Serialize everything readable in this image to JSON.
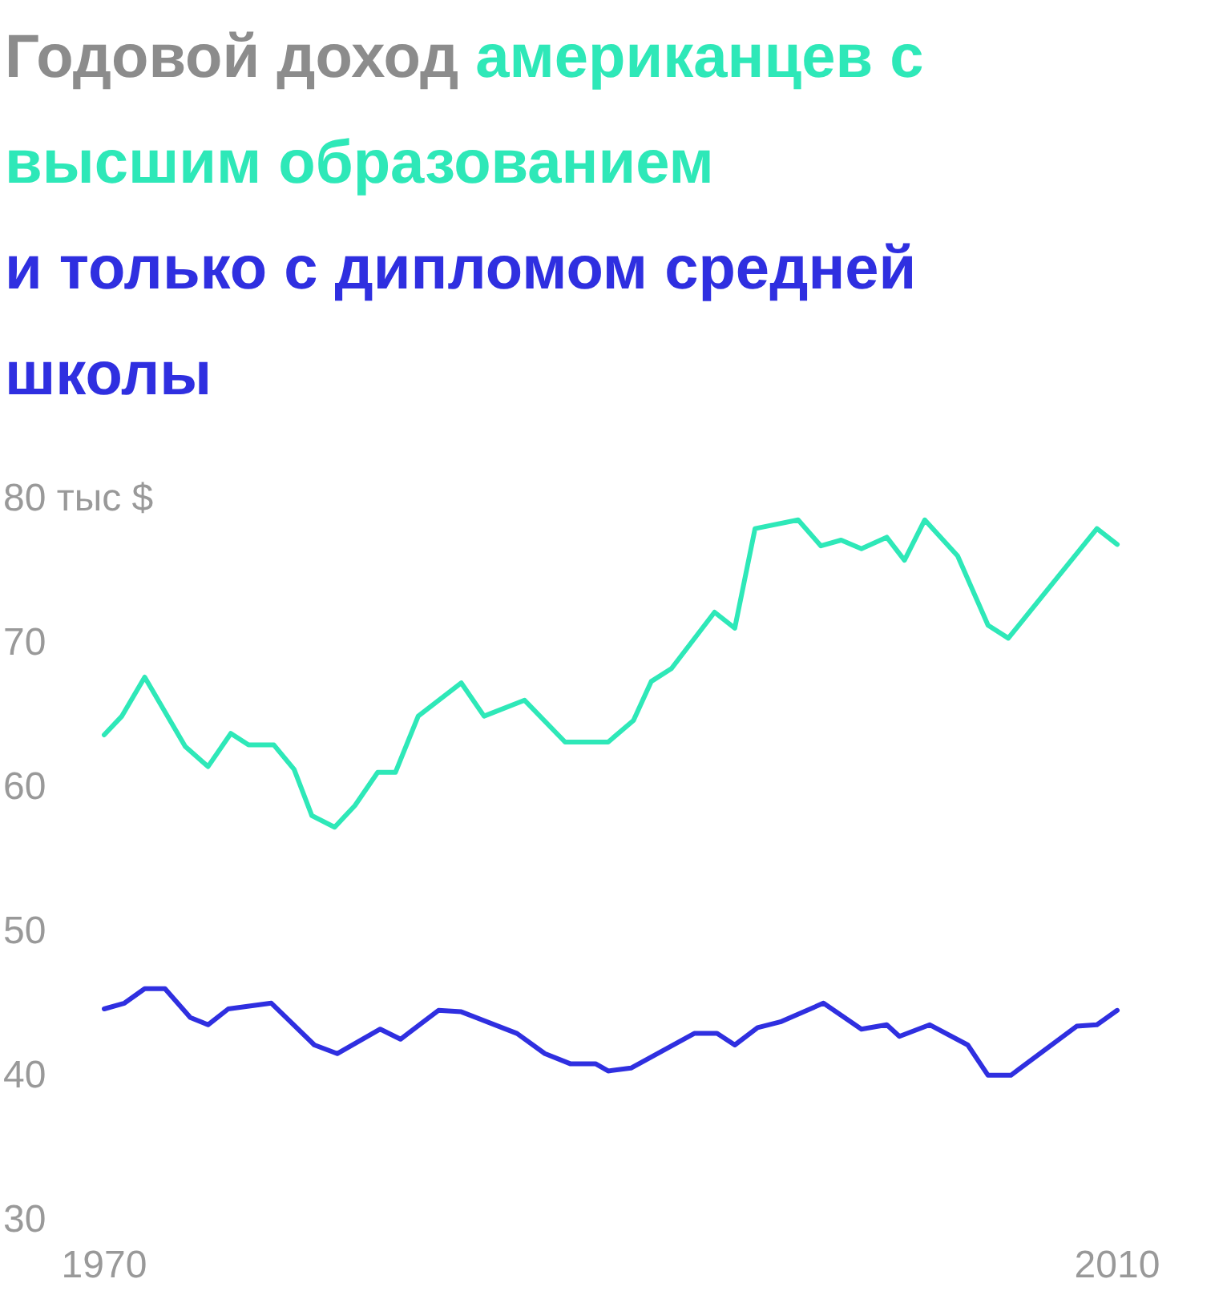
{
  "chart_data": {
    "type": "line",
    "title": "Годовой доход",
    "series": [
      {
        "name": "американцев с высшим образованием",
        "color": "#2ee8b8",
        "x": [
          1970.0,
          1970.7,
          1971.6,
          1973.2,
          1974.1,
          1975.0,
          1975.7,
          1976.7,
          1977.5,
          1978.2,
          1979.1,
          1979.9,
          1980.8,
          1981.5,
          1982.4,
          1984.1,
          1985.0,
          1986.6,
          1988.2,
          1989.9,
          1990.9,
          1991.6,
          1992.4,
          1994.1,
          1994.9,
          1995.7,
          1997.4,
          1998.3,
          1999.1,
          1999.9,
          2000.9,
          2001.6,
          2002.4,
          2003.7,
          2004.9,
          2005.7,
          2009.2,
          2010.0
        ],
        "values": [
          63.5,
          64.8,
          67.5,
          62.7,
          61.3,
          63.6,
          62.8,
          62.8,
          61.1,
          57.9,
          57.1,
          58.6,
          60.9,
          60.9,
          64.8,
          67.1,
          64.8,
          65.9,
          63.0,
          63.0,
          64.5,
          67.2,
          68.1,
          72.0,
          70.9,
          77.8,
          78.4,
          76.6,
          77.0,
          76.4,
          77.2,
          75.6,
          78.4,
          75.9,
          71.1,
          70.2,
          77.8,
          76.7
        ]
      },
      {
        "name": "и только с дипломом средней школы",
        "color": "#2f2fe0",
        "x": [
          1970.0,
          1970.8,
          1971.6,
          1972.4,
          1973.4,
          1974.1,
          1974.9,
          1976.6,
          1978.3,
          1979.2,
          1980.9,
          1981.7,
          1983.2,
          1984.1,
          1986.3,
          1987.4,
          1988.4,
          1989.4,
          1989.9,
          1990.8,
          1993.3,
          1994.2,
          1994.9,
          1995.8,
          1996.7,
          1998.4,
          1999.9,
          2000.9,
          2001.4,
          2002.6,
          2004.1,
          2004.9,
          2005.8,
          2008.4,
          2009.2,
          2010.0
        ],
        "values": [
          44.5,
          44.9,
          45.9,
          45.9,
          43.9,
          43.4,
          44.5,
          44.9,
          42.0,
          41.4,
          43.1,
          42.4,
          44.4,
          44.3,
          42.8,
          41.4,
          40.7,
          40.7,
          40.2,
          40.4,
          42.8,
          42.8,
          42.0,
          43.2,
          43.6,
          44.9,
          43.1,
          43.4,
          42.6,
          43.4,
          42.0,
          39.9,
          39.9,
          43.3,
          43.4,
          44.4
        ]
      }
    ],
    "xlim": [
      1970,
      2010
    ],
    "xticks": [
      1970,
      2010
    ],
    "ylim": [
      30,
      80
    ],
    "yticks": [
      30,
      40,
      50,
      60,
      70,
      {
        "value": 80,
        "label": "80 тыс $"
      }
    ],
    "grid": false,
    "marker": "none",
    "line_style": "solid"
  }
}
